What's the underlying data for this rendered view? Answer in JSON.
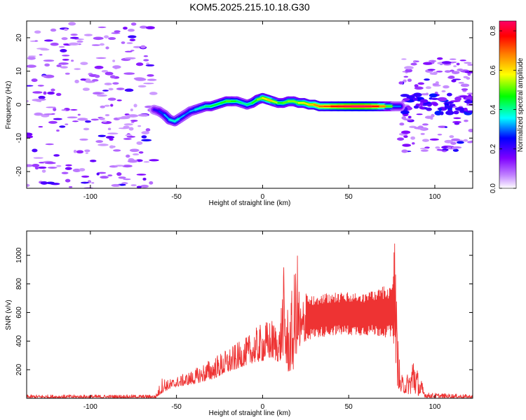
{
  "title": "KOM5.2025.215.10.18.G30",
  "chart_data": [
    {
      "type": "heatmap",
      "xlabel": "Height of straight line (km)",
      "ylabel": "Frequency (Hz)",
      "xlim": [
        -137,
        122
      ],
      "ylim": [
        -25,
        25
      ],
      "xticks": [
        -100,
        -50,
        0,
        50,
        100
      ],
      "yticks": [
        -20,
        -10,
        0,
        10,
        20
      ],
      "colorbar": {
        "label": "Normalized spectral amplitude",
        "range": [
          0,
          0.85
        ],
        "ticks": [
          0.0,
          0.2,
          0.4,
          0.6,
          0.8
        ],
        "colors": [
          "#ffffff",
          "#c080ff",
          "#7f00ff",
          "#0000ff",
          "#00ffff",
          "#00ff00",
          "#ffff00",
          "#ff8000",
          "#ff0000",
          "#ff0066"
        ]
      },
      "ridge": [
        {
          "x": -63,
          "y": -1.5,
          "a": 0.2
        },
        {
          "x": -60,
          "y": -2.0,
          "a": 0.25
        },
        {
          "x": -57,
          "y": -3.0,
          "a": 0.3
        },
        {
          "x": -54,
          "y": -4.5,
          "a": 0.35
        },
        {
          "x": -51,
          "y": -5.0,
          "a": 0.4
        },
        {
          "x": -48,
          "y": -4.0,
          "a": 0.35
        },
        {
          "x": -45,
          "y": -3.0,
          "a": 0.3
        },
        {
          "x": -42,
          "y": -2.0,
          "a": 0.3
        },
        {
          "x": -39,
          "y": -1.5,
          "a": 0.35
        },
        {
          "x": -36,
          "y": -1.0,
          "a": 0.4
        },
        {
          "x": -33,
          "y": -0.5,
          "a": 0.4
        },
        {
          "x": -30,
          "y": -0.5,
          "a": 0.45
        },
        {
          "x": -27,
          "y": 0.0,
          "a": 0.45
        },
        {
          "x": -24,
          "y": 0.5,
          "a": 0.45
        },
        {
          "x": -21,
          "y": 1.0,
          "a": 0.5
        },
        {
          "x": -18,
          "y": 1.0,
          "a": 0.5
        },
        {
          "x": -15,
          "y": 1.0,
          "a": 0.45
        },
        {
          "x": -12,
          "y": 0.5,
          "a": 0.4
        },
        {
          "x": -9,
          "y": 0.0,
          "a": 0.4
        },
        {
          "x": -6,
          "y": 0.5,
          "a": 0.45
        },
        {
          "x": -3,
          "y": 1.5,
          "a": 0.5
        },
        {
          "x": 0,
          "y": 2.0,
          "a": 0.55
        },
        {
          "x": 3,
          "y": 1.5,
          "a": 0.65
        },
        {
          "x": 6,
          "y": 1.0,
          "a": 0.6
        },
        {
          "x": 9,
          "y": 0.5,
          "a": 0.5
        },
        {
          "x": 12,
          "y": 0.5,
          "a": 0.45
        },
        {
          "x": 15,
          "y": 1.0,
          "a": 0.55
        },
        {
          "x": 18,
          "y": 1.0,
          "a": 0.5
        },
        {
          "x": 21,
          "y": 0.5,
          "a": 0.55
        },
        {
          "x": 24,
          "y": 0.5,
          "a": 0.6
        },
        {
          "x": 27,
          "y": 0.0,
          "a": 0.6
        },
        {
          "x": 30,
          "y": 0.0,
          "a": 0.65
        },
        {
          "x": 33,
          "y": -0.5,
          "a": 0.7
        },
        {
          "x": 36,
          "y": -0.5,
          "a": 0.7
        },
        {
          "x": 40,
          "y": -0.5,
          "a": 0.75
        },
        {
          "x": 44,
          "y": -0.5,
          "a": 0.8
        },
        {
          "x": 48,
          "y": -0.5,
          "a": 0.8
        },
        {
          "x": 52,
          "y": -0.5,
          "a": 0.85
        },
        {
          "x": 56,
          "y": -0.5,
          "a": 0.85
        },
        {
          "x": 60,
          "y": -0.5,
          "a": 0.85
        },
        {
          "x": 64,
          "y": -0.5,
          "a": 0.8
        },
        {
          "x": 68,
          "y": -0.5,
          "a": 0.75
        },
        {
          "x": 72,
          "y": -0.5,
          "a": 0.6
        },
        {
          "x": 76,
          "y": -0.5,
          "a": 0.4
        },
        {
          "x": 80,
          "y": -0.5,
          "a": 0.2
        }
      ]
    },
    {
      "type": "line",
      "xlabel": "Height of straight line (km)",
      "ylabel": "SNR (v/v)",
      "xlim": [
        -137,
        122
      ],
      "ylim": [
        0,
        1170
      ],
      "xticks": [
        -100,
        -50,
        0,
        50,
        100
      ],
      "yticks": [
        200,
        400,
        600,
        800,
        1000
      ],
      "color": "#ee3333",
      "envelope": {
        "x": [
          -137,
          -62,
          -58,
          -55,
          -50,
          -40,
          -30,
          -20,
          -10,
          -5,
          0,
          5,
          10,
          12,
          13,
          15,
          18,
          20,
          22,
          25,
          30,
          40,
          50,
          60,
          70,
          75,
          77,
          78,
          80,
          85,
          88,
          90,
          95,
          122
        ],
        "low": [
          2,
          2,
          40,
          60,
          80,
          100,
          130,
          180,
          230,
          250,
          260,
          280,
          250,
          300,
          220,
          180,
          200,
          330,
          300,
          400,
          420,
          440,
          440,
          440,
          430,
          420,
          350,
          100,
          40,
          30,
          30,
          20,
          5,
          2
        ],
        "high": [
          25,
          25,
          160,
          130,
          150,
          200,
          280,
          350,
          420,
          480,
          530,
          560,
          520,
          950,
          850,
          600,
          840,
          1070,
          700,
          760,
          720,
          740,
          740,
          740,
          780,
          790,
          1150,
          600,
          160,
          180,
          380,
          200,
          40,
          25
        ]
      }
    }
  ]
}
